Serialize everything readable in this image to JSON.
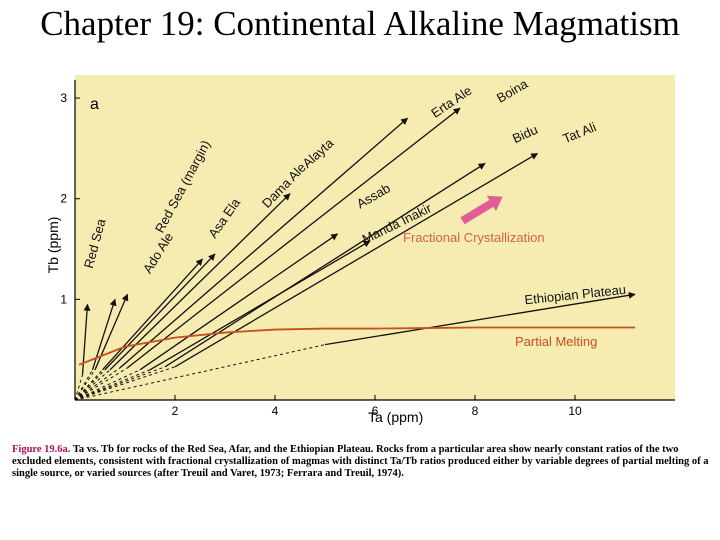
{
  "slide": {
    "title": "Chapter 19: Continental Alkaline Magmatism",
    "caption_label": "Figure 19.6a.",
    "caption_text": " Ta vs. Tb for rocks of the Red Sea, Afar, and the Ethiopian Plateau. Rocks from a particular area show nearly constant ratios of the two excluded elements, consistent with fractional crystallization of magmas with distinct Ta/Tb ratios produced either by variable degrees of partial melting of a single source, or varied sources (after Treuil and Varet, 1973; Ferrara and Treuil, 1974)."
  },
  "colors": {
    "panel_bg": "#f6ebb0",
    "line": "#111111",
    "partial_melting": "#c7501e",
    "fractional_label": "#d85f52",
    "fc_arrow": "#e25c96"
  },
  "chart_data": {
    "type": "line",
    "panel_label": "a",
    "xlabel": "Ta (ppm)",
    "ylabel": "Tb (ppm)",
    "xlim": [
      0,
      12
    ],
    "ylim": [
      0,
      3.1
    ],
    "xticks": [
      2,
      4,
      6,
      8,
      10
    ],
    "yticks": [
      1,
      2,
      3
    ],
    "trends": [
      {
        "name": "Red Sea",
        "solid_from": [
          0.15,
          0.25
        ],
        "end": [
          0.25,
          0.95
        ],
        "label_pos": [
          0.35,
          1.3
        ],
        "label_angle": -75
      },
      {
        "name": "Red Sea (margin)",
        "solid_from": [
          0.35,
          0.3
        ],
        "end": [
          0.8,
          1.0
        ],
        "label_pos": [
          1.75,
          1.65
        ],
        "label_angle": -62
      },
      {
        "name": "Ado Ale",
        "solid_from": [
          0.4,
          0.3
        ],
        "end": [
          1.05,
          1.05
        ],
        "label_pos": [
          1.5,
          1.25
        ],
        "label_angle": -58
      },
      {
        "name": "Asa Ela",
        "solid_from": [
          0.55,
          0.3
        ],
        "end": [
          2.55,
          1.4
        ],
        "label_pos": [
          2.8,
          1.6
        ],
        "label_angle": -55
      },
      {
        "name": "Dama Ale",
        "solid_from": [
          0.6,
          0.3
        ],
        "end": [
          2.8,
          1.45
        ],
        "label_pos": [
          3.85,
          1.9
        ],
        "label_angle": -46
      },
      {
        "name": "Alayta",
        "solid_from": [
          0.7,
          0.3
        ],
        "end": [
          4.3,
          2.05
        ],
        "label_pos": [
          4.65,
          2.3
        ],
        "label_angle": -42
      },
      {
        "name": "Erta Ale",
        "solid_from": [
          0.9,
          0.32
        ],
        "end": [
          6.65,
          2.8
        ],
        "label_pos": [
          7.2,
          2.8
        ],
        "label_angle": -34
      },
      {
        "name": "Boina",
        "solid_from": [
          1.05,
          0.32
        ],
        "end": [
          7.7,
          2.9
        ],
        "label_pos": [
          8.5,
          2.95
        ],
        "label_angle": -30
      },
      {
        "name": "Assab",
        "solid_from": [
          1.3,
          0.3
        ],
        "end": [
          5.25,
          1.65
        ],
        "label_pos": [
          5.7,
          1.9
        ],
        "label_angle": -30
      },
      {
        "name": "Manda Inakir",
        "solid_from": [
          1.5,
          0.3
        ],
        "end": [
          5.9,
          1.58
        ],
        "label_pos": [
          5.8,
          1.55
        ],
        "label_angle": -26
      },
      {
        "name": "Bidu",
        "solid_from": [
          1.8,
          0.33
        ],
        "end": [
          8.2,
          2.35
        ],
        "label_pos": [
          8.8,
          2.55
        ],
        "label_angle": -24
      },
      {
        "name": "Tat Ali",
        "solid_from": [
          2.0,
          0.33
        ],
        "end": [
          9.25,
          2.45
        ],
        "label_pos": [
          9.8,
          2.55
        ],
        "label_angle": -22
      },
      {
        "name": "Ethiopian Plateau",
        "solid_from": [
          5.0,
          0.55
        ],
        "end": [
          11.2,
          1.05
        ],
        "label_pos": [
          9.0,
          0.95
        ],
        "label_angle": -6
      }
    ],
    "partial_melting": {
      "label": "Partial Melting",
      "x": [
        0.08,
        1,
        2,
        3,
        4,
        5,
        6,
        7,
        8,
        9,
        10,
        11,
        11.2
      ],
      "y": [
        0.35,
        0.53,
        0.62,
        0.67,
        0.7,
        0.71,
        0.71,
        0.715,
        0.72,
        0.72,
        0.72,
        0.72,
        0.72
      ]
    },
    "fractional_crystallization": {
      "label": "Fractional Crystallization",
      "arrow_from": [
        7.75,
        1.78
      ],
      "arrow_to": [
        8.55,
        2.02
      ]
    }
  }
}
